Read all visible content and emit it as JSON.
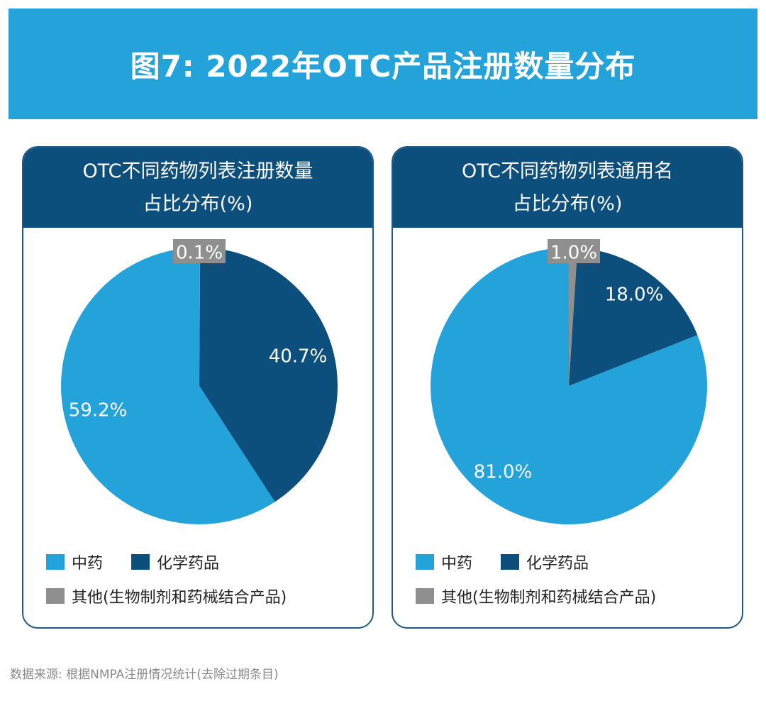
{
  "title": "图7: 2022年OTC产品注册数量分布",
  "colors": {
    "header_band": "#24a3db",
    "card_header": "#0d4f7c",
    "card_border": "#1f5a86",
    "tcm": "#24a3db",
    "chemical": "#0d4f7c",
    "other": "#8f8f8f"
  },
  "legend": {
    "tcm": "中药",
    "chemical": "化学药品",
    "other": "其他(生物制剂和药械结合产品)"
  },
  "chart_data": [
    {
      "type": "pie",
      "title_line1": "OTC不同药物列表注册数量",
      "title_line2": "占比分布(%)",
      "slices": [
        {
          "label": "其他(生物制剂和药械结合产品)",
          "value": 0.1,
          "value_label": "0.1%",
          "color": "#8f8f8f"
        },
        {
          "label": "化学药品",
          "value": 40.7,
          "value_label": "40.7%",
          "color": "#0d4f7c"
        },
        {
          "label": "中药",
          "value": 59.2,
          "value_label": "59.2%",
          "color": "#24a3db"
        }
      ]
    },
    {
      "type": "pie",
      "title_line1": "OTC不同药物列表通用名",
      "title_line2": "占比分布(%)",
      "slices": [
        {
          "label": "其他(生物制剂和药械结合产品)",
          "value": 1.0,
          "value_label": "1.0%",
          "color": "#8f8f8f"
        },
        {
          "label": "化学药品",
          "value": 18.0,
          "value_label": "18.0%",
          "color": "#0d4f7c"
        },
        {
          "label": "中药",
          "value": 81.0,
          "value_label": "81.0%",
          "color": "#24a3db"
        }
      ]
    }
  ],
  "source": "数据来源: 根据NMPA注册情况统计(去除过期条目)"
}
